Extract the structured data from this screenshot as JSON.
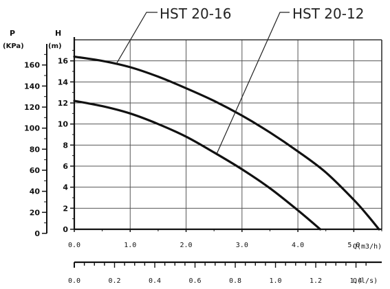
{
  "chart_data": {
    "type": "line",
    "xlabel": "Q(m3/h)",
    "xlim": [
      0,
      5.5
    ],
    "x_ticks": [
      "0.0",
      "1.0",
      "2.0",
      "3.0",
      "4.0",
      "5.0"
    ],
    "ylabel_left_P": "P",
    "ylabel_left_P_unit": "(KPa)",
    "ylabel_H": "H",
    "ylabel_H_unit": "(m)",
    "ylim": [
      0,
      18
    ],
    "h_ticks": [
      "0",
      "2",
      "4",
      "6",
      "8",
      "10",
      "12",
      "14",
      "16"
    ],
    "p_ticks": [
      "0",
      "20",
      "40",
      "60",
      "80",
      "100",
      "120",
      "140",
      "160"
    ],
    "secondary_xlabel": "Q(l/s)",
    "secondary_xlim": [
      0,
      1.528
    ],
    "secondary_ticks": [
      "0.0",
      "0.2",
      "0.4",
      "0.6",
      "0.8",
      "1.0",
      "1.2",
      "1.4"
    ],
    "grid": true,
    "series": [
      {
        "name": "HST 20-16",
        "x": [
          0.0,
          0.5,
          1.0,
          1.5,
          2.0,
          2.5,
          3.0,
          3.5,
          4.0,
          4.5,
          5.0,
          5.25,
          5.45
        ],
        "y": [
          16.4,
          16.0,
          15.4,
          14.5,
          13.4,
          12.2,
          10.8,
          9.2,
          7.4,
          5.4,
          2.8,
          1.3,
          0.0
        ]
      },
      {
        "name": "HST 20-12",
        "x": [
          0.0,
          0.5,
          1.0,
          1.5,
          2.0,
          2.5,
          3.0,
          3.5,
          4.0,
          4.4
        ],
        "y": [
          12.2,
          11.7,
          11.0,
          10.0,
          8.8,
          7.3,
          5.7,
          3.9,
          1.8,
          0.0
        ]
      }
    ]
  }
}
